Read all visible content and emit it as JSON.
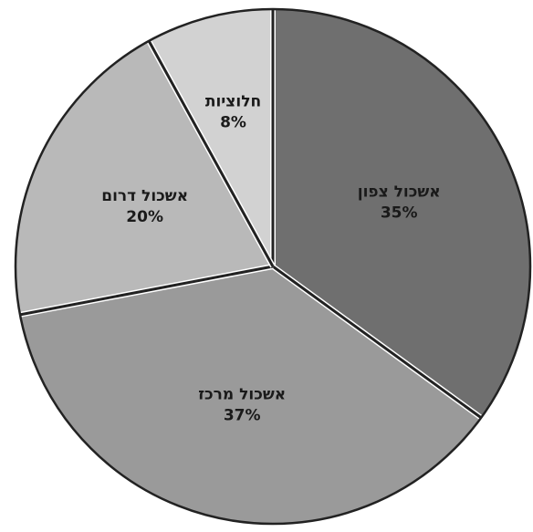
{
  "chart_data": {
    "type": "pie",
    "slices": [
      {
        "label": "אשכול צפון",
        "value": 35,
        "value_label": "35%",
        "color": "#6f6f6f"
      },
      {
        "label": "אשכול מרכז",
        "value": 37,
        "value_label": "37%",
        "color": "#9a9a9a"
      },
      {
        "label": "אשכול דרום",
        "value": 20,
        "value_label": "20%",
        "color": "#b9b9b9"
      },
      {
        "label": "חלוציות",
        "value": 8,
        "value_label": "8%",
        "color": "#d2d2d2"
      }
    ],
    "start": "12 o'clock",
    "direction": "clockwise",
    "title": "",
    "legend": "none"
  }
}
